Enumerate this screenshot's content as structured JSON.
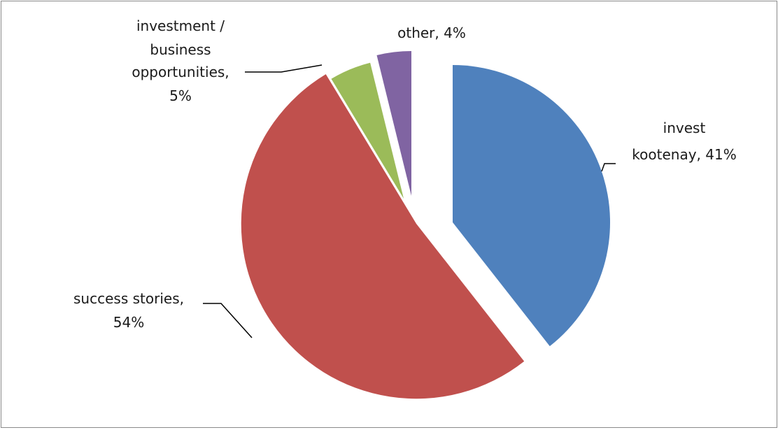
{
  "chart_data": {
    "type": "pie",
    "title": "",
    "slices": [
      {
        "name": "invest kootenay",
        "value": 41,
        "label": "invest kootenay, 41%",
        "color": "#4f81bd"
      },
      {
        "name": "success stories",
        "value": 54,
        "label": "success stories, 54%",
        "color": "#c0504d"
      },
      {
        "name": "investment / business opportunities",
        "value": 5,
        "label": "investment / business opportunities, 5%",
        "color": "#9bbb59"
      },
      {
        "name": "other",
        "value": 4,
        "label": "other, 4%",
        "color": "#8064a2"
      }
    ],
    "exploded": true,
    "legend": "none"
  }
}
